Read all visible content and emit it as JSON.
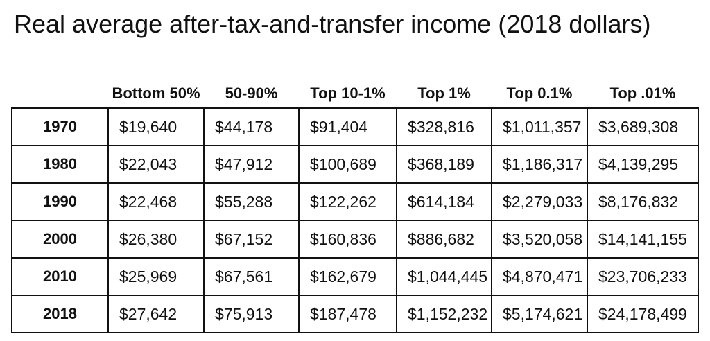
{
  "title": "Real average after-tax-and-transfer income (2018 dollars)",
  "chart_data": {
    "type": "table",
    "title": "Real average after-tax-and-transfer income (2018 dollars)",
    "corner_label": "",
    "columns": [
      "Bottom 50%",
      "50-90%",
      "Top 10-1%",
      "Top 1%",
      "Top 0.1%",
      "Top .01%"
    ],
    "rows": [
      {
        "year": "1970",
        "values": [
          "$19,640",
          "$44,178",
          "$91,404",
          "$328,816",
          "$1,011,357",
          "$3,689,308"
        ]
      },
      {
        "year": "1980",
        "values": [
          "$22,043",
          "$47,912",
          "$100,689",
          "$368,189",
          "$1,186,317",
          "$4,139,295"
        ]
      },
      {
        "year": "1990",
        "values": [
          "$22,468",
          "$55,288",
          "$122,262",
          "$614,184",
          "$2,279,033",
          "$8,176,832"
        ]
      },
      {
        "year": "2000",
        "values": [
          "$26,380",
          "$67,152",
          "$160,836",
          "$886,682",
          "$3,520,058",
          "$14,141,155"
        ]
      },
      {
        "year": "2010",
        "values": [
          "$25,969",
          "$67,561",
          "$162,679",
          "$1,044,445",
          "$4,870,471",
          "$23,706,233"
        ]
      },
      {
        "year": "2018",
        "values": [
          "$27,642",
          "$75,913",
          "$187,478",
          "$1,152,232",
          "$5,174,621",
          "$24,178,499"
        ]
      }
    ]
  },
  "colors": {
    "text": "#111111",
    "border": "#111111",
    "background": "#ffffff"
  }
}
